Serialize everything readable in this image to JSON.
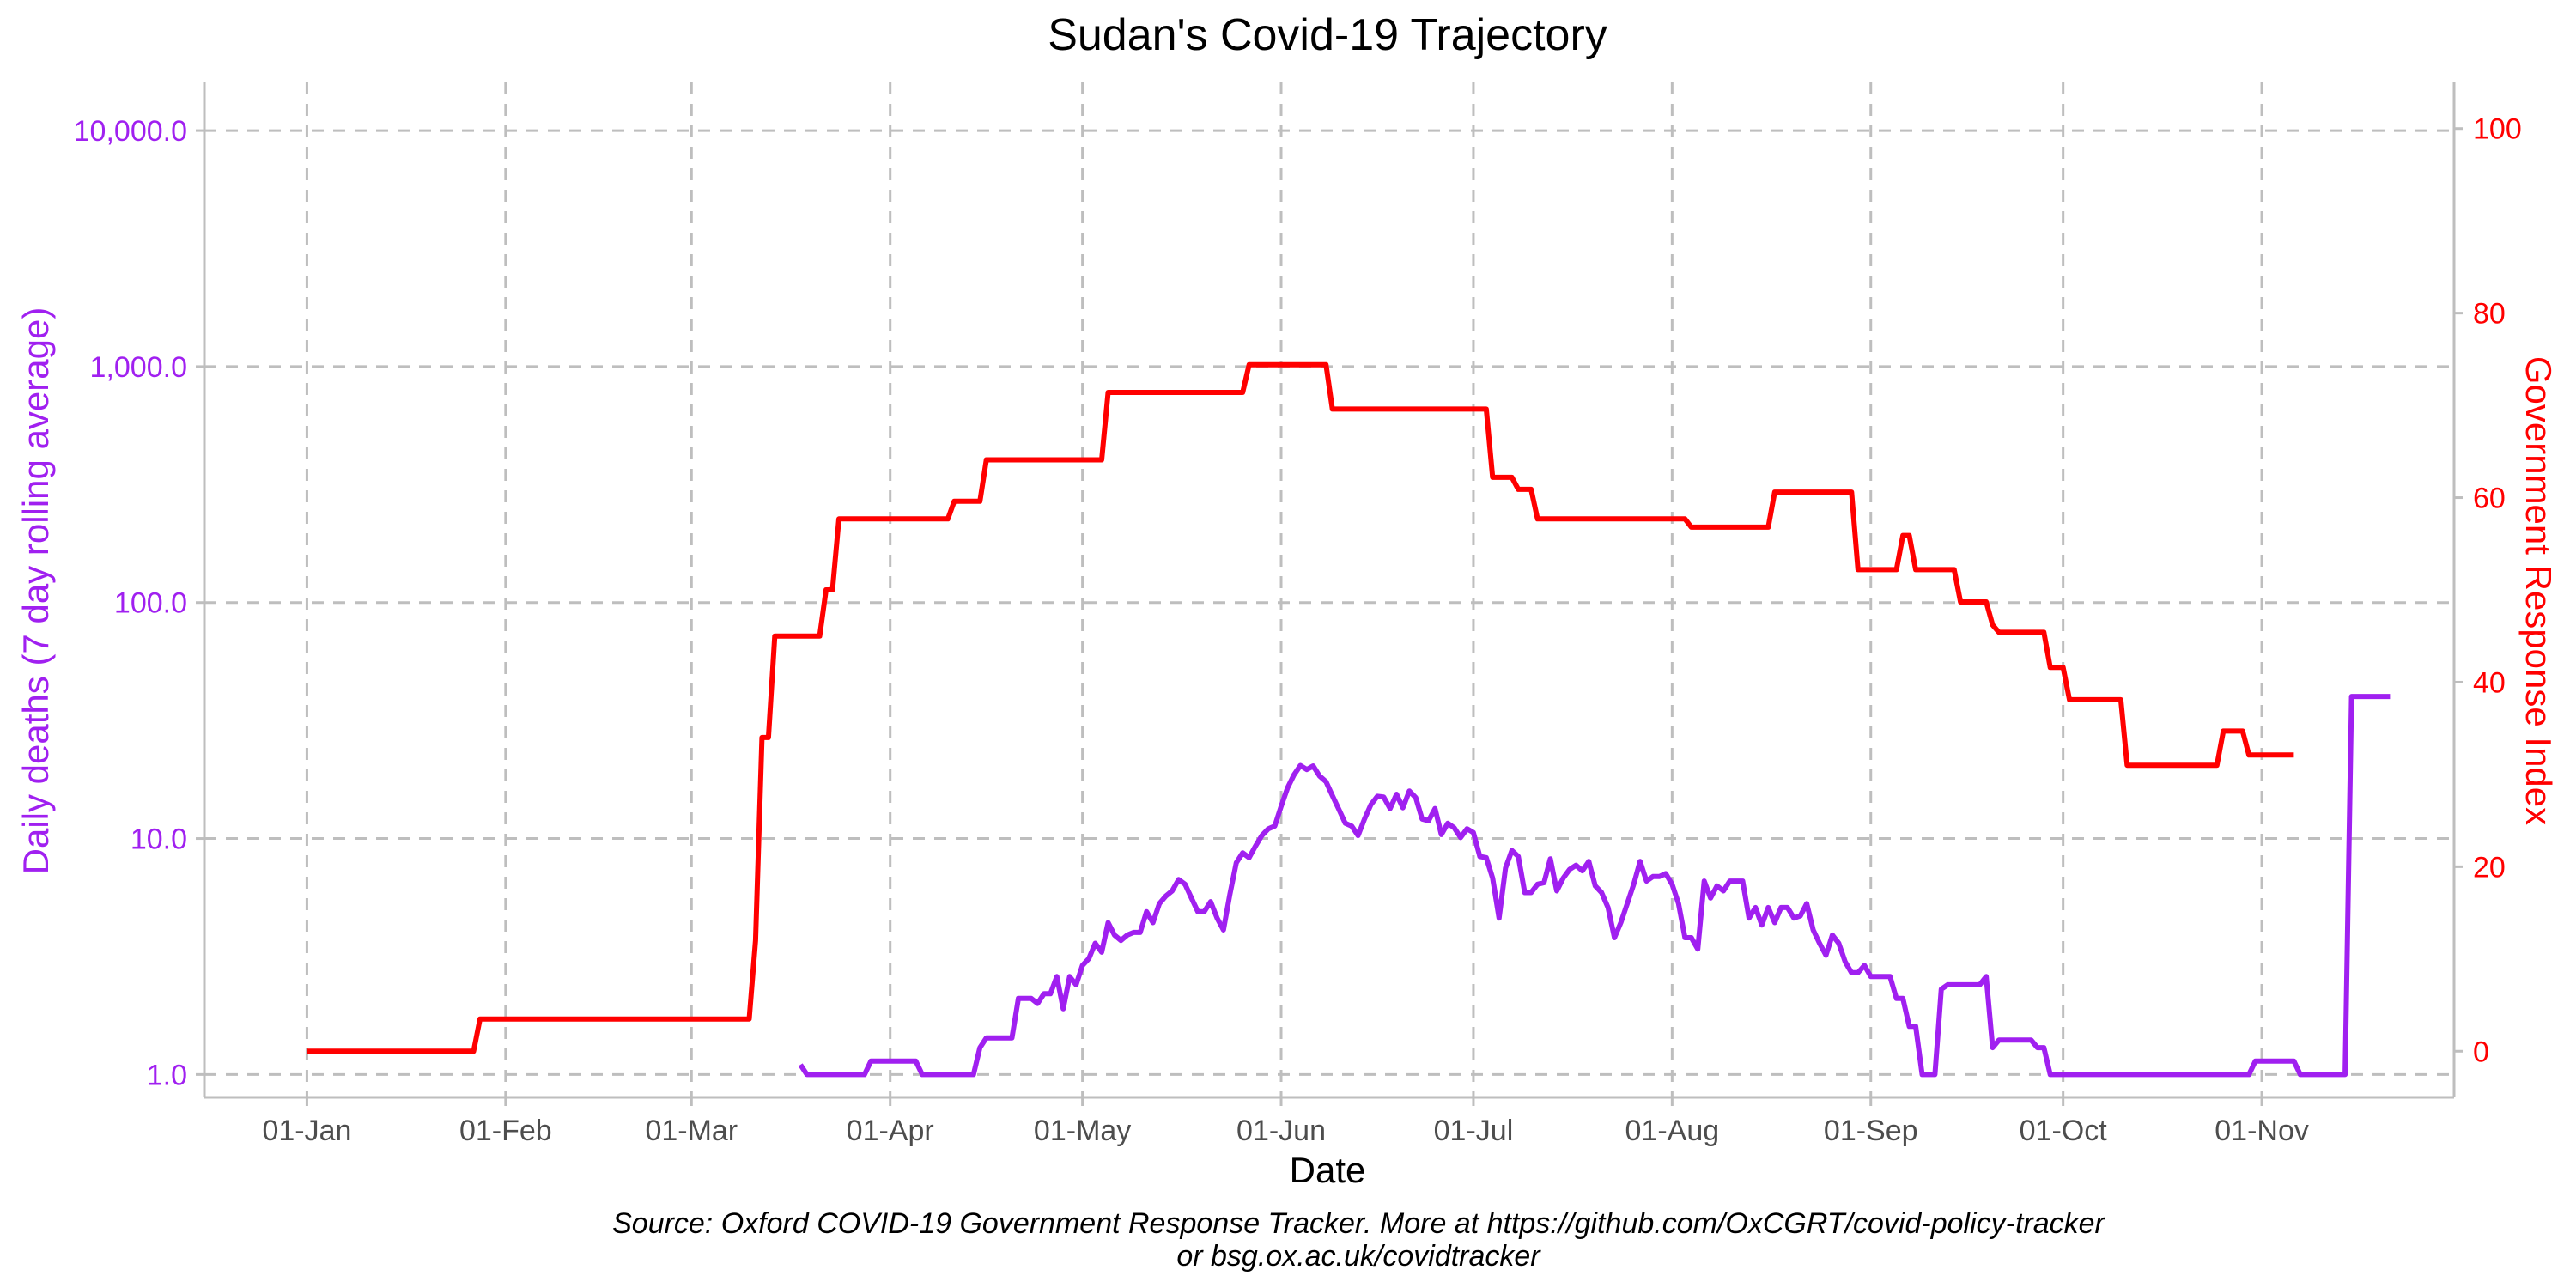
{
  "chart_data": {
    "type": "line",
    "title": "Sudan's Covid-19 Trajectory",
    "xlabel": "Date",
    "ylabel_left": "Daily deaths (7 day rolling average)",
    "ylabel_right": "Government Response Index",
    "caption_line1": "Source: Oxford COVID-19 Government Response Tracker. More at https://github.com/OxCGRT/covid-policy-tracker",
    "caption_line2": "or bsg.ox.ac.uk/covidtracker",
    "x_ticks": [
      "01-Jan",
      "01-Feb",
      "01-Mar",
      "01-Apr",
      "01-May",
      "01-Jun",
      "01-Jul",
      "01-Aug",
      "01-Sep",
      "01-Oct",
      "01-Nov"
    ],
    "x_range": [
      "2019-12-16",
      "2020-12-01"
    ],
    "y_left_scale": "log",
    "y_left_range": [
      0.8,
      16000
    ],
    "y_left_ticks": [
      1,
      10,
      100,
      1000,
      10000
    ],
    "y_left_tick_labels": [
      "1.0",
      "10.0",
      "100.0",
      "1,000.0",
      "10,000.0"
    ],
    "y_right_range": [
      -5,
      105
    ],
    "y_right_ticks": [
      0,
      20,
      40,
      60,
      80,
      100
    ],
    "y_right_tick_labels": [
      "0",
      "20",
      "40",
      "60",
      "80",
      "100"
    ],
    "grid": true,
    "colors": {
      "deaths": "#a020f0",
      "response": "#ff0000",
      "grid": "#bebebe",
      "axis": "#bebebe"
    },
    "series": [
      {
        "name": "Daily deaths (7 day rolling average)",
        "axis": "left",
        "points": [
          [
            "2020-03-18",
            1.1
          ],
          [
            "2020-03-19",
            1.0
          ],
          [
            "2020-03-28",
            1.0
          ],
          [
            "2020-03-29",
            1.14
          ],
          [
            "2020-04-05",
            1.14
          ],
          [
            "2020-04-06",
            1.0
          ],
          [
            "2020-04-14",
            1.0
          ],
          [
            "2020-04-15",
            1.3
          ],
          [
            "2020-04-16",
            1.43
          ],
          [
            "2020-04-20",
            1.43
          ],
          [
            "2020-04-21",
            2.1
          ],
          [
            "2020-04-23",
            2.1
          ],
          [
            "2020-04-24",
            2.0
          ],
          [
            "2020-04-25",
            2.2
          ],
          [
            "2020-04-26",
            2.2
          ],
          [
            "2020-04-27",
            2.6
          ],
          [
            "2020-04-28",
            1.9
          ],
          [
            "2020-04-29",
            2.6
          ],
          [
            "2020-04-30",
            2.4
          ],
          [
            "2020-05-01",
            2.9
          ],
          [
            "2020-05-02",
            3.1
          ],
          [
            "2020-05-03",
            3.6
          ],
          [
            "2020-05-04",
            3.3
          ],
          [
            "2020-05-05",
            4.4
          ],
          [
            "2020-05-06",
            3.9
          ],
          [
            "2020-05-07",
            3.7
          ],
          [
            "2020-05-08",
            3.9
          ],
          [
            "2020-05-09",
            4.0
          ],
          [
            "2020-05-10",
            4.0
          ],
          [
            "2020-05-11",
            4.9
          ],
          [
            "2020-05-12",
            4.4
          ],
          [
            "2020-05-13",
            5.3
          ],
          [
            "2020-05-14",
            5.7
          ],
          [
            "2020-05-15",
            6.0
          ],
          [
            "2020-05-16",
            6.7
          ],
          [
            "2020-05-17",
            6.4
          ],
          [
            "2020-05-18",
            5.6
          ],
          [
            "2020-05-19",
            4.9
          ],
          [
            "2020-05-20",
            4.9
          ],
          [
            "2020-05-21",
            5.4
          ],
          [
            "2020-05-22",
            4.6
          ],
          [
            "2020-05-23",
            4.1
          ],
          [
            "2020-05-24",
            5.8
          ],
          [
            "2020-05-25",
            7.9
          ],
          [
            "2020-05-26",
            8.7
          ],
          [
            "2020-05-27",
            8.3
          ],
          [
            "2020-05-28",
            9.3
          ],
          [
            "2020-05-29",
            10.3
          ],
          [
            "2020-05-30",
            11.0
          ],
          [
            "2020-05-31",
            11.3
          ],
          [
            "2020-06-01",
            13.7
          ],
          [
            "2020-06-02",
            16.4
          ],
          [
            "2020-06-03",
            18.6
          ],
          [
            "2020-06-04",
            20.4
          ],
          [
            "2020-06-05",
            19.6
          ],
          [
            "2020-06-06",
            20.3
          ],
          [
            "2020-06-07",
            18.4
          ],
          [
            "2020-06-08",
            17.4
          ],
          [
            "2020-06-09",
            15.2
          ],
          [
            "2020-06-10",
            13.3
          ],
          [
            "2020-06-11",
            11.6
          ],
          [
            "2020-06-12",
            11.3
          ],
          [
            "2020-06-13",
            10.3
          ],
          [
            "2020-06-14",
            12.1
          ],
          [
            "2020-06-15",
            13.9
          ],
          [
            "2020-06-16",
            15.1
          ],
          [
            "2020-06-17",
            15.0
          ],
          [
            "2020-06-18",
            13.4
          ],
          [
            "2020-06-19",
            15.4
          ],
          [
            "2020-06-20",
            13.5
          ],
          [
            "2020-06-21",
            15.9
          ],
          [
            "2020-06-22",
            14.9
          ],
          [
            "2020-06-23",
            12.1
          ],
          [
            "2020-06-24",
            11.9
          ],
          [
            "2020-06-25",
            13.4
          ],
          [
            "2020-06-26",
            10.4
          ],
          [
            "2020-06-27",
            11.6
          ],
          [
            "2020-06-28",
            11.1
          ],
          [
            "2020-06-29",
            10.1
          ],
          [
            "2020-06-30",
            11.0
          ],
          [
            "2020-07-01",
            10.6
          ],
          [
            "2020-07-02",
            8.4
          ],
          [
            "2020-07-03",
            8.3
          ],
          [
            "2020-07-04",
            6.8
          ],
          [
            "2020-07-05",
            4.6
          ],
          [
            "2020-07-06",
            7.5
          ],
          [
            "2020-07-07",
            8.9
          ],
          [
            "2020-07-08",
            8.4
          ],
          [
            "2020-07-09",
            5.9
          ],
          [
            "2020-07-10",
            5.9
          ],
          [
            "2020-07-11",
            6.4
          ],
          [
            "2020-07-12",
            6.5
          ],
          [
            "2020-07-13",
            8.2
          ],
          [
            "2020-07-14",
            6.0
          ],
          [
            "2020-07-15",
            6.8
          ],
          [
            "2020-07-16",
            7.4
          ],
          [
            "2020-07-17",
            7.7
          ],
          [
            "2020-07-18",
            7.3
          ],
          [
            "2020-07-19",
            8.0
          ],
          [
            "2020-07-20",
            6.3
          ],
          [
            "2020-07-21",
            5.9
          ],
          [
            "2020-07-22",
            5.1
          ],
          [
            "2020-07-23",
            3.8
          ],
          [
            "2020-07-24",
            4.4
          ],
          [
            "2020-07-25",
            5.3
          ],
          [
            "2020-07-26",
            6.4
          ],
          [
            "2020-07-27",
            8.0
          ],
          [
            "2020-07-28",
            6.6
          ],
          [
            "2020-07-29",
            6.9
          ],
          [
            "2020-07-30",
            6.9
          ],
          [
            "2020-07-31",
            7.1
          ],
          [
            "2020-08-01",
            6.4
          ],
          [
            "2020-08-02",
            5.3
          ],
          [
            "2020-08-03",
            3.8
          ],
          [
            "2020-08-04",
            3.8
          ],
          [
            "2020-08-05",
            3.4
          ],
          [
            "2020-08-06",
            6.6
          ],
          [
            "2020-08-07",
            5.6
          ],
          [
            "2020-08-08",
            6.3
          ],
          [
            "2020-08-09",
            6.0
          ],
          [
            "2020-08-10",
            6.6
          ],
          [
            "2020-08-11",
            6.6
          ],
          [
            "2020-08-12",
            6.6
          ],
          [
            "2020-08-13",
            4.6
          ],
          [
            "2020-08-14",
            5.1
          ],
          [
            "2020-08-15",
            4.3
          ],
          [
            "2020-08-16",
            5.1
          ],
          [
            "2020-08-17",
            4.4
          ],
          [
            "2020-08-18",
            5.1
          ],
          [
            "2020-08-19",
            5.1
          ],
          [
            "2020-08-20",
            4.6
          ],
          [
            "2020-08-21",
            4.7
          ],
          [
            "2020-08-22",
            5.3
          ],
          [
            "2020-08-23",
            4.1
          ],
          [
            "2020-08-24",
            3.6
          ],
          [
            "2020-08-25",
            3.2
          ],
          [
            "2020-08-26",
            3.9
          ],
          [
            "2020-08-27",
            3.6
          ],
          [
            "2020-08-28",
            3.0
          ],
          [
            "2020-08-29",
            2.7
          ],
          [
            "2020-08-30",
            2.7
          ],
          [
            "2020-08-31",
            2.9
          ],
          [
            "2020-09-01",
            2.6
          ],
          [
            "2020-09-04",
            2.6
          ],
          [
            "2020-09-05",
            2.1
          ],
          [
            "2020-09-06",
            2.1
          ],
          [
            "2020-09-07",
            1.6
          ],
          [
            "2020-09-08",
            1.6
          ],
          [
            "2020-09-09",
            1.0
          ],
          [
            "2020-09-11",
            1.0
          ],
          [
            "2020-09-12",
            2.3
          ],
          [
            "2020-09-13",
            2.4
          ],
          [
            "2020-09-18",
            2.4
          ],
          [
            "2020-09-19",
            2.6
          ],
          [
            "2020-09-20",
            1.3
          ],
          [
            "2020-09-21",
            1.4
          ],
          [
            "2020-09-26",
            1.4
          ],
          [
            "2020-09-27",
            1.3
          ],
          [
            "2020-09-28",
            1.3
          ],
          [
            "2020-09-29",
            1.0
          ],
          [
            "2020-10-30",
            1.0
          ],
          [
            "2020-10-31",
            1.14
          ],
          [
            "2020-11-06",
            1.14
          ],
          [
            "2020-11-07",
            1.0
          ],
          [
            "2020-11-14",
            1.0
          ],
          [
            "2020-11-15",
            40.0
          ],
          [
            "2020-11-21",
            40.0
          ]
        ]
      },
      {
        "name": "Government Response Index",
        "axis": "right",
        "points": [
          [
            "2020-01-01",
            0
          ],
          [
            "2020-01-27",
            0
          ],
          [
            "2020-01-28",
            3.5
          ],
          [
            "2020-03-10",
            3.5
          ],
          [
            "2020-03-11",
            12
          ],
          [
            "2020-03-12",
            34
          ],
          [
            "2020-03-13",
            34
          ],
          [
            "2020-03-14",
            45
          ],
          [
            "2020-03-21",
            45
          ],
          [
            "2020-03-22",
            50
          ],
          [
            "2020-03-23",
            50
          ],
          [
            "2020-03-24",
            57.7
          ],
          [
            "2020-04-10",
            57.7
          ],
          [
            "2020-04-11",
            59.6
          ],
          [
            "2020-04-15",
            59.6
          ],
          [
            "2020-04-16",
            64.1
          ],
          [
            "2020-05-04",
            64.1
          ],
          [
            "2020-05-05",
            71.4
          ],
          [
            "2020-05-26",
            71.4
          ],
          [
            "2020-05-27",
            74.4
          ],
          [
            "2020-06-08",
            74.4
          ],
          [
            "2020-06-09",
            69.6
          ],
          [
            "2020-07-03",
            69.6
          ],
          [
            "2020-07-04",
            62.2
          ],
          [
            "2020-07-07",
            62.2
          ],
          [
            "2020-07-08",
            60.9
          ],
          [
            "2020-07-10",
            60.9
          ],
          [
            "2020-07-11",
            57.7
          ],
          [
            "2020-08-03",
            57.7
          ],
          [
            "2020-08-04",
            56.8
          ],
          [
            "2020-08-16",
            56.8
          ],
          [
            "2020-08-17",
            60.6
          ],
          [
            "2020-08-29",
            60.6
          ],
          [
            "2020-08-30",
            52.2
          ],
          [
            "2020-09-05",
            52.2
          ],
          [
            "2020-09-06",
            55.9
          ],
          [
            "2020-09-07",
            55.9
          ],
          [
            "2020-09-08",
            52.2
          ],
          [
            "2020-09-14",
            52.2
          ],
          [
            "2020-09-15",
            48.7
          ],
          [
            "2020-09-19",
            48.7
          ],
          [
            "2020-09-20",
            46.2
          ],
          [
            "2020-09-21",
            45.4
          ],
          [
            "2020-09-28",
            45.4
          ],
          [
            "2020-09-29",
            41.6
          ],
          [
            "2020-10-01",
            41.6
          ],
          [
            "2020-10-02",
            38.1
          ],
          [
            "2020-10-10",
            38.1
          ],
          [
            "2020-10-11",
            31.0
          ],
          [
            "2020-10-25",
            31.0
          ],
          [
            "2020-10-26",
            34.7
          ],
          [
            "2020-10-29",
            34.7
          ],
          [
            "2020-10-30",
            32.1
          ],
          [
            "2020-11-06",
            32.1
          ]
        ]
      }
    ]
  }
}
